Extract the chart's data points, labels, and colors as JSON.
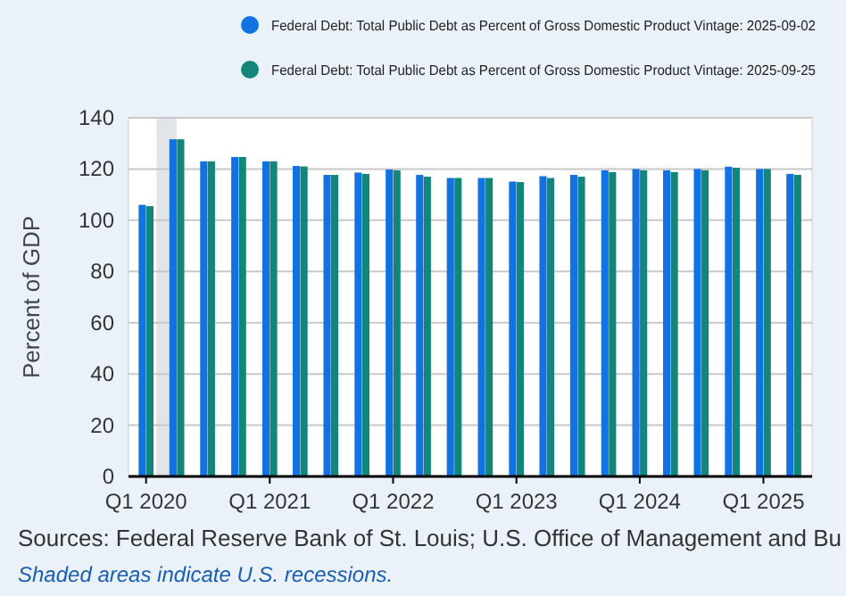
{
  "chart_data": {
    "type": "bar",
    "ylabel": "Percent of GDP",
    "x": [
      "2020-01-01",
      "2020-04-01",
      "2020-07-01",
      "2020-10-01",
      "2021-01-01",
      "2021-04-01",
      "2021-07-01",
      "2021-10-01",
      "2022-01-01",
      "2022-04-01",
      "2022-07-01",
      "2022-10-01",
      "2023-01-01",
      "2023-04-01",
      "2023-07-01",
      "2023-10-01",
      "2024-01-01",
      "2024-04-01",
      "2024-07-01",
      "2024-10-01",
      "2025-01-01",
      "2025-04-01"
    ],
    "series": [
      {
        "name": "Federal Debt: Total Public Debt as Percent of Gross Domestic Product Vintage: 2025-09-02",
        "color": "#1172e2",
        "values": [
          106,
          131.6,
          123,
          124.7,
          123,
          121.2,
          117.7,
          118.6,
          119.8,
          117.7,
          116.5,
          116.5,
          115.1,
          117.2,
          117.7,
          119.5,
          120,
          119.5,
          120,
          120.9,
          120,
          118.1
        ]
      },
      {
        "name": "Federal Debt: Total Public Debt as Percent of Gross Domestic Product Vintage: 2025-09-25",
        "color": "#14857a",
        "values": [
          105.5,
          131.6,
          123,
          124.7,
          123,
          121,
          117.7,
          118.1,
          119.5,
          117,
          116.5,
          116.5,
          114.9,
          116.5,
          117,
          118.8,
          119.5,
          118.8,
          119.5,
          120.5,
          120,
          117.7
        ]
      }
    ],
    "xlim": [
      "2019-11-10",
      "2025-05-25"
    ],
    "xticks": [
      {
        "value": "2020-01-01",
        "label": "Q1 2020"
      },
      {
        "value": "2021-01-01",
        "label": "Q1 2021"
      },
      {
        "value": "2022-01-01",
        "label": "Q1 2022"
      },
      {
        "value": "2023-01-01",
        "label": "Q1 2023"
      },
      {
        "value": "2024-01-01",
        "label": "Q1 2024"
      },
      {
        "value": "2025-01-01",
        "label": "Q1 2025"
      }
    ],
    "ylim": [
      0,
      140
    ],
    "yticks": [
      0,
      20,
      40,
      60,
      80,
      100,
      120,
      140
    ],
    "grid": "y",
    "legend": "top right",
    "bands": [
      {
        "axis": "x",
        "from": "2020-02-01",
        "to": "2020-04-01",
        "color": "#e1e4e8"
      }
    ],
    "annotations": [
      "Sources: Federal Reserve Bank of St. Louis; U.S. Office of Management and Bu",
      "Shaded areas indicate U.S. recessions."
    ]
  }
}
